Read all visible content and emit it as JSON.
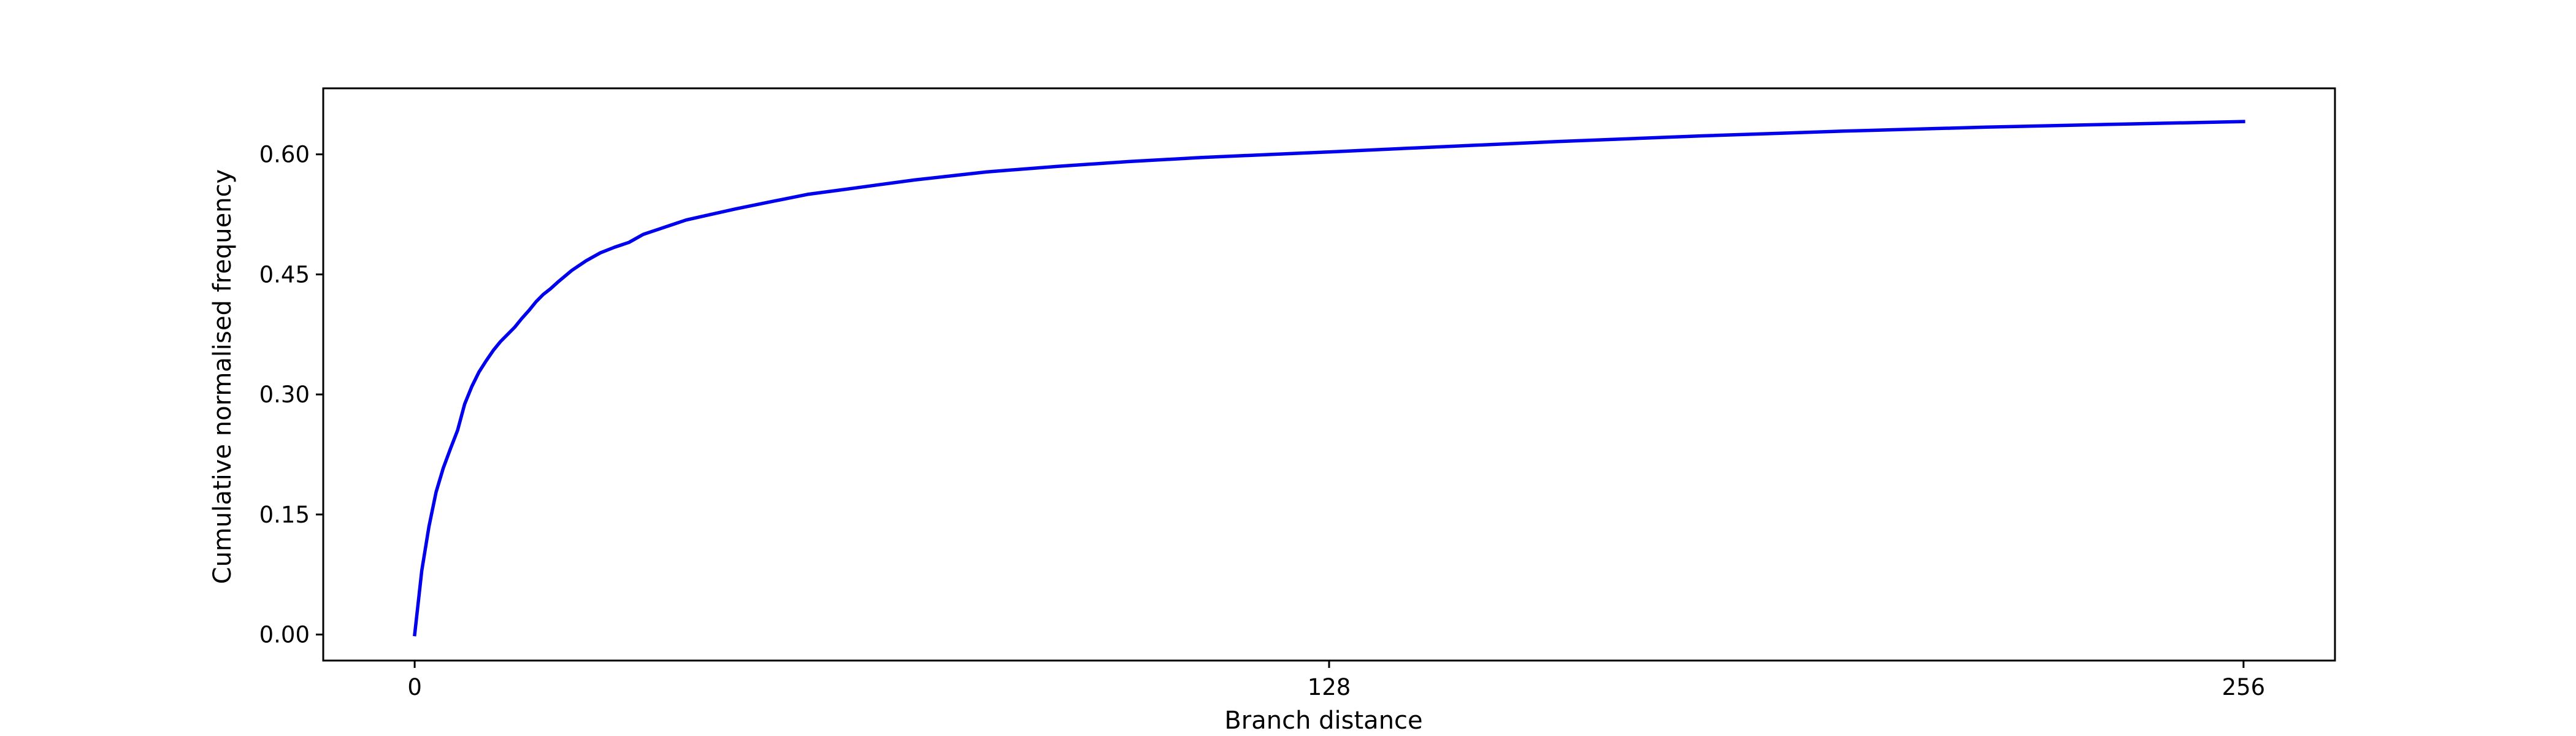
{
  "chart_data": {
    "type": "line",
    "title": "",
    "xlabel": "Branch distance",
    "ylabel": "Cumulative normalised frequency",
    "xlim": [
      -12.8,
      268.8
    ],
    "ylim": [
      -0.0325,
      0.6825
    ],
    "xticks": [
      0,
      128,
      256
    ],
    "xtick_labels": [
      "0",
      "128",
      "256"
    ],
    "yticks": [
      0.0,
      0.15,
      0.3,
      0.45,
      0.6
    ],
    "ytick_labels": [
      "0.00",
      "0.15",
      "0.30",
      "0.45",
      "0.60"
    ],
    "grid": false,
    "legend": "none",
    "series": [
      {
        "color": "#0000ee",
        "x": [
          0,
          1,
          2,
          3,
          4,
          5,
          6,
          7,
          8,
          9,
          10,
          11,
          12,
          13,
          14,
          15,
          16,
          17,
          18,
          19,
          20,
          22,
          24,
          26,
          28,
          30,
          32,
          34,
          36,
          38,
          40,
          45,
          50,
          55,
          60,
          65,
          70,
          75,
          80,
          90,
          100,
          110,
          120,
          128,
          140,
          160,
          180,
          200,
          220,
          240,
          256
        ],
        "y": [
          0.0,
          0.08,
          0.135,
          0.178,
          0.208,
          0.232,
          0.255,
          0.288,
          0.31,
          0.328,
          0.342,
          0.355,
          0.366,
          0.375,
          0.384,
          0.395,
          0.405,
          0.416,
          0.425,
          0.432,
          0.44,
          0.455,
          0.467,
          0.477,
          0.484,
          0.49,
          0.5,
          0.506,
          0.512,
          0.518,
          0.522,
          0.532,
          0.541,
          0.55,
          0.556,
          0.562,
          0.568,
          0.573,
          0.578,
          0.585,
          0.591,
          0.596,
          0.6,
          0.603,
          0.608,
          0.616,
          0.623,
          0.629,
          0.634,
          0.638,
          0.641
        ]
      }
    ]
  }
}
